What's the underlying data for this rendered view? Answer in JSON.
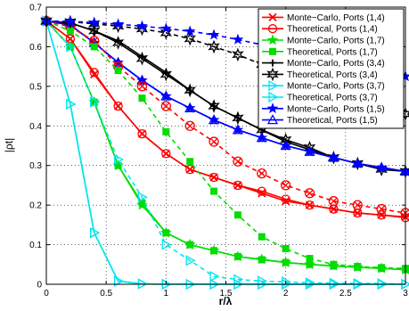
{
  "chart_data": {
    "type": "line",
    "xlabel": "r/λ",
    "ylabel": "|ρt|",
    "xlim": [
      0,
      3
    ],
    "ylim": [
      0,
      0.7
    ],
    "xticks": [
      "0",
      "0.5",
      "1",
      "1.5",
      "2",
      "2.5",
      "3"
    ],
    "yticks": [
      "0",
      "0.1",
      "0.2",
      "0.3",
      "0.4",
      "0.5",
      "0.6",
      "0.7"
    ],
    "grid": true,
    "legend_position": "top-right",
    "x": [
      0,
      0.2,
      0.4,
      0.6,
      0.8,
      1.0,
      1.2,
      1.4,
      1.6,
      1.8,
      2.0,
      2.2,
      2.4,
      2.6,
      2.8,
      3.0
    ],
    "series": [
      {
        "name": "Monte−Carlo, Ports (1,4)",
        "color": "#ff0000",
        "marker": "x",
        "dashed": false,
        "values": [
          0.665,
          0.62,
          0.53,
          0.45,
          0.38,
          0.33,
          0.29,
          0.27,
          0.25,
          0.23,
          0.21,
          0.2,
          0.19,
          0.18,
          0.175,
          0.17
        ]
      },
      {
        "name": "Theoretical, Ports (1,4)",
        "color": "#ff0000",
        "marker": "circle",
        "dashed": false,
        "values": [
          0.665,
          0.62,
          0.535,
          0.45,
          0.38,
          0.33,
          0.29,
          0.27,
          0.25,
          0.235,
          0.215,
          0.2,
          0.19,
          0.18,
          0.175,
          0.168
        ]
      },
      {
        "name": "Monte−Carlo, Ports (1,7)",
        "color": "#00dd00",
        "marker": "star",
        "dashed": false,
        "values": [
          0.665,
          0.6,
          0.46,
          0.3,
          0.2,
          0.13,
          0.1,
          0.085,
          0.07,
          0.063,
          0.055,
          0.05,
          0.047,
          0.043,
          0.04,
          0.037
        ]
      },
      {
        "name": "Theoretical, Ports (1,7)",
        "color": "#00dd00",
        "marker": "square",
        "dashed": false,
        "values": [
          0.665,
          0.6,
          0.46,
          0.3,
          0.205,
          0.13,
          0.1,
          0.085,
          0.07,
          0.062,
          0.055,
          0.05,
          0.046,
          0.043,
          0.04,
          0.037
        ]
      },
      {
        "name": "Monte−Carlo, Ports (3,4)",
        "color": "#000000",
        "marker": "plus",
        "dashed": false,
        "values": [
          0.665,
          0.66,
          0.64,
          0.615,
          0.575,
          0.535,
          0.49,
          0.45,
          0.42,
          0.39,
          0.36,
          0.34,
          0.32,
          0.305,
          0.295,
          0.285
        ]
      },
      {
        "name": "Theoretical, Ports (3,4)",
        "color": "#000000",
        "marker": "hexstar",
        "dashed": false,
        "values": [
          0.665,
          0.66,
          0.64,
          0.61,
          0.57,
          0.53,
          0.49,
          0.45,
          0.42,
          0.39,
          0.365,
          0.345,
          0.32,
          0.305,
          0.29,
          0.285
        ]
      },
      {
        "name": "Monte−Carlo, Ports (3,7)",
        "color": "#00e5ee",
        "marker": "triangle-right",
        "dashed": false,
        "values": [
          0.665,
          0.455,
          0.13,
          0.008,
          0.001,
          0.0,
          0.0,
          0.0,
          0.0,
          0.0,
          0.0,
          0.0,
          0.0,
          0.0,
          0.0,
          0.0
        ]
      },
      {
        "name": "Theoretical, Ports (3,7)",
        "color": "#00e5ee",
        "marker": "triangle-right",
        "dashed": false,
        "values": [
          0.665,
          0.455,
          0.13,
          0.008,
          0.001,
          0.0,
          0.0,
          0.0,
          0.0,
          0.0,
          0.0,
          0.0,
          0.0,
          0.0,
          0.0,
          0.0
        ]
      },
      {
        "name": "Monte−Carlo,  Ports (1,5)",
        "color": "#0000ff",
        "marker": "star",
        "dashed": false,
        "values": [
          0.665,
          0.655,
          0.61,
          0.56,
          0.515,
          0.475,
          0.445,
          0.415,
          0.39,
          0.37,
          0.35,
          0.335,
          0.32,
          0.305,
          0.295,
          0.285
        ]
      },
      {
        "name": "Theoretical,  Ports (1,5)",
        "color": "#0000ff",
        "marker": "triangle-up",
        "dashed": false,
        "values": [
          0.665,
          0.655,
          0.61,
          0.56,
          0.515,
          0.475,
          0.445,
          0.415,
          0.39,
          0.37,
          0.35,
          0.335,
          0.32,
          0.305,
          0.295,
          0.285
        ]
      },
      {
        "color": "#ff0000",
        "marker": "circle-x",
        "dashed": true,
        "values": [
          0.665,
          0.65,
          0.615,
          0.55,
          0.5,
          0.45,
          0.4,
          0.36,
          0.31,
          0.28,
          0.25,
          0.23,
          0.21,
          0.2,
          0.19,
          0.18
        ]
      },
      {
        "color": "#00dd00",
        "marker": "square",
        "dashed": true,
        "values": [
          0.665,
          0.64,
          0.6,
          0.54,
          0.47,
          0.385,
          0.31,
          0.235,
          0.175,
          0.12,
          0.09,
          0.065,
          0.05,
          0.045,
          0.042,
          0.04
        ]
      },
      {
        "color": "#00e5ee",
        "marker": "triangle-right",
        "dashed": true,
        "values": [
          0.665,
          0.6,
          0.46,
          0.315,
          0.22,
          0.1,
          0.06,
          0.02,
          0.012,
          0.008,
          0.006,
          0.004,
          0.003,
          0.002,
          0.002,
          0.0
        ]
      },
      {
        "color": "#000000",
        "marker": "hexstar",
        "dashed": true,
        "values": [
          0.665,
          0.663,
          0.658,
          0.652,
          0.645,
          0.635,
          0.62,
          0.6,
          0.58,
          0.555,
          0.53,
          0.5,
          0.475,
          0.455,
          0.44,
          0.43
        ]
      },
      {
        "color": "#0000ff",
        "marker": "star",
        "dashed": true,
        "values": [
          0.665,
          0.664,
          0.661,
          0.657,
          0.652,
          0.646,
          0.639,
          0.63,
          0.618,
          0.605,
          0.59,
          0.575,
          0.56,
          0.545,
          0.535,
          0.525
        ]
      }
    ]
  }
}
